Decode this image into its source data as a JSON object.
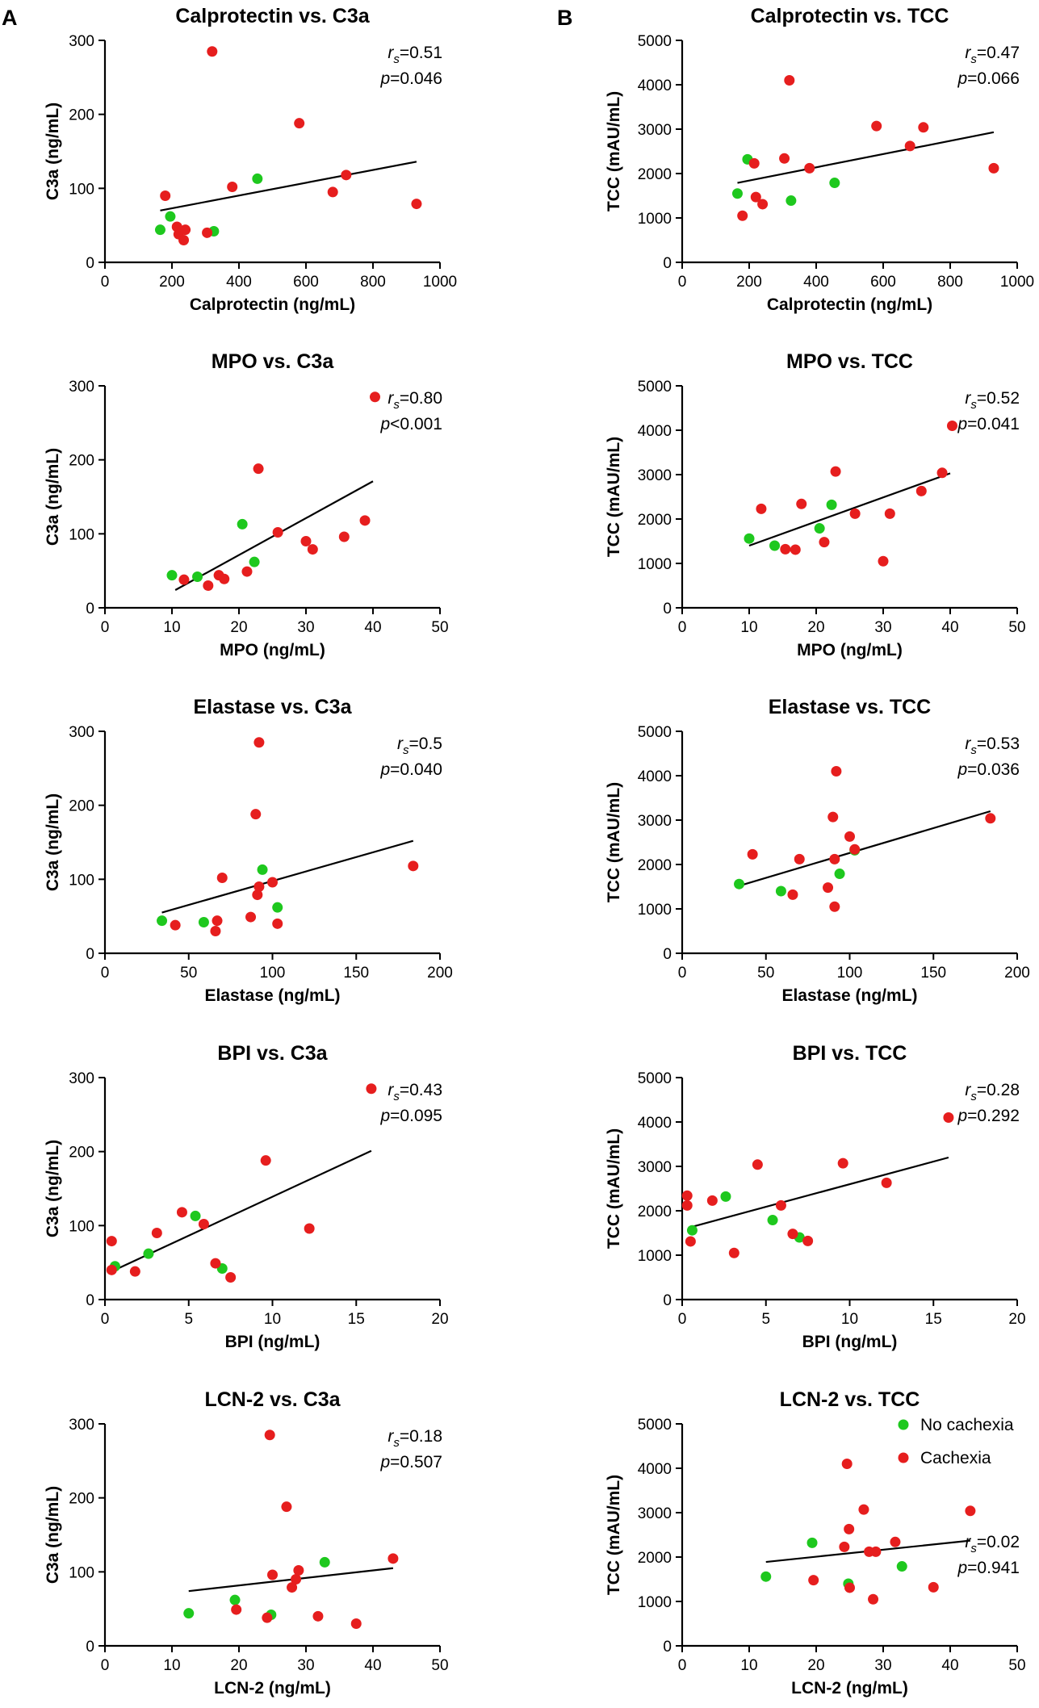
{
  "panel_letters": [
    "A",
    "B"
  ],
  "colors": {
    "no_cachexia": "#1ec81e",
    "cachexia": "#e61e1e",
    "axis": "#000000",
    "regression": "#000000"
  },
  "legend": [
    {
      "label": "No cachexia",
      "color": "#1ec81e"
    },
    {
      "label": "Cachexia",
      "color": "#e61e1e"
    }
  ],
  "chart_data": [
    {
      "type": "scatter",
      "title": "Calprotectin vs. C3a",
      "xlabel": "Calprotectin (ng/mL)",
      "ylabel": "C3a (ng/mL)",
      "xlim": [
        0,
        1000
      ],
      "ylim": [
        0,
        300
      ],
      "xticks": [
        "0",
        "200",
        "400",
        "600",
        "800",
        "1000"
      ],
      "yticks": [
        "0",
        "100",
        "200",
        "300"
      ],
      "stat_r": "=0.51",
      "stat_p": "=0.046",
      "fit": [
        [
          165,
          70
        ],
        [
          930,
          136
        ]
      ],
      "series": [
        {
          "name": "No cachexia",
          "points": [
            [
              165,
              44
            ],
            [
              195,
              62
            ],
            [
              325,
              42
            ],
            [
              455,
              113
            ]
          ]
        },
        {
          "name": "Cachexia",
          "points": [
            [
              180,
              90
            ],
            [
              215,
              48
            ],
            [
              220,
              38
            ],
            [
              235,
              30
            ],
            [
              240,
              44
            ],
            [
              305,
              40
            ],
            [
              320,
              285
            ],
            [
              380,
              102
            ],
            [
              580,
              188
            ],
            [
              680,
              95
            ],
            [
              720,
              118
            ],
            [
              930,
              79
            ]
          ]
        }
      ]
    },
    {
      "type": "scatter",
      "title": "Calprotectin vs. TCC",
      "xlabel": "Calprotectin (ng/mL)",
      "ylabel": "TCC (mAU/mL)",
      "xlim": [
        0,
        1000
      ],
      "ylim": [
        0,
        5000
      ],
      "xticks": [
        "0",
        "200",
        "400",
        "600",
        "800",
        "1000"
      ],
      "yticks": [
        "0",
        "1000",
        "2000",
        "3000",
        "4000",
        "5000"
      ],
      "stat_r": "=0.47",
      "stat_p": "=0.066",
      "fit": [
        [
          165,
          1790
        ],
        [
          930,
          2930
        ]
      ],
      "series": [
        {
          "name": "No cachexia",
          "points": [
            [
              165,
              1550
            ],
            [
              195,
              2320
            ],
            [
              325,
              1390
            ],
            [
              455,
              1790
            ]
          ]
        },
        {
          "name": "Cachexia",
          "points": [
            [
              180,
              1050
            ],
            [
              215,
              2230
            ],
            [
              220,
              1470
            ],
            [
              240,
              1310
            ],
            [
              305,
              2340
            ],
            [
              320,
              4100
            ],
            [
              380,
              2120
            ],
            [
              580,
              3070
            ],
            [
              680,
              2620
            ],
            [
              720,
              3040
            ],
            [
              930,
              2120
            ]
          ]
        }
      ]
    },
    {
      "type": "scatter",
      "title": "MPO vs. C3a",
      "xlabel": "MPO (ng/mL)",
      "ylabel": "C3a (ng/mL)",
      "xlim": [
        0,
        50
      ],
      "ylim": [
        0,
        300
      ],
      "xticks": [
        "0",
        "10",
        "20",
        "30",
        "40",
        "50"
      ],
      "yticks": [
        "0",
        "100",
        "200",
        "300"
      ],
      "stat_r": "=0.80",
      "stat_p": "<0.001",
      "fit": [
        [
          10.5,
          24
        ],
        [
          40,
          171
        ]
      ],
      "series": [
        {
          "name": "No cachexia",
          "points": [
            [
              10,
              44
            ],
            [
              13.8,
              42
            ],
            [
              20.5,
              113
            ],
            [
              22.3,
              62
            ]
          ]
        },
        {
          "name": "Cachexia",
          "points": [
            [
              11.8,
              38
            ],
            [
              15.4,
              30
            ],
            [
              17,
              44
            ],
            [
              17.8,
              39
            ],
            [
              21.2,
              49
            ],
            [
              22.9,
              188
            ],
            [
              25.8,
              102
            ],
            [
              30,
              90
            ],
            [
              31,
              79
            ],
            [
              35.7,
              96
            ],
            [
              38.8,
              118
            ],
            [
              40.3,
              285
            ]
          ]
        }
      ]
    },
    {
      "type": "scatter",
      "title": "MPO vs. TCC",
      "xlabel": "MPO (ng/mL)",
      "ylabel": "TCC (mAU/mL)",
      "xlim": [
        0,
        50
      ],
      "ylim": [
        0,
        5000
      ],
      "xticks": [
        "0",
        "10",
        "20",
        "30",
        "40",
        "50"
      ],
      "yticks": [
        "0",
        "1000",
        "2000",
        "3000",
        "4000",
        "5000"
      ],
      "stat_r": "=0.52",
      "stat_p": "=0.041",
      "fit": [
        [
          10,
          1400
        ],
        [
          40,
          3030
        ]
      ],
      "series": [
        {
          "name": "No cachexia",
          "points": [
            [
              10,
              1560
            ],
            [
              13.8,
              1400
            ],
            [
              20.5,
              1790
            ],
            [
              22.3,
              2320
            ]
          ]
        },
        {
          "name": "Cachexia",
          "points": [
            [
              11.8,
              2230
            ],
            [
              15.4,
              1320
            ],
            [
              16.9,
              1310
            ],
            [
              17.8,
              2340
            ],
            [
              21.2,
              1480
            ],
            [
              22.9,
              3070
            ],
            [
              25.8,
              2120
            ],
            [
              30,
              1050
            ],
            [
              31,
              2120
            ],
            [
              35.7,
              2630
            ],
            [
              38.8,
              3040
            ],
            [
              40.3,
              4100
            ]
          ]
        }
      ]
    },
    {
      "type": "scatter",
      "title": "Elastase vs. C3a",
      "xlabel": "Elastase (ng/mL)",
      "ylabel": "C3a (ng/mL)",
      "xlim": [
        0,
        200
      ],
      "ylim": [
        0,
        300
      ],
      "xticks": [
        "0",
        "50",
        "100",
        "150",
        "200"
      ],
      "yticks": [
        "0",
        "100",
        "200",
        "300"
      ],
      "stat_r": "=0.5",
      "stat_p": "=0.040",
      "fit": [
        [
          34,
          55
        ],
        [
          184,
          152
        ]
      ],
      "series": [
        {
          "name": "No cachexia",
          "points": [
            [
              34,
              44
            ],
            [
              59,
              42
            ],
            [
              94,
              113
            ],
            [
              103,
              62
            ]
          ]
        },
        {
          "name": "Cachexia",
          "points": [
            [
              42,
              38
            ],
            [
              66,
              30
            ],
            [
              67,
              44
            ],
            [
              70,
              102
            ],
            [
              87,
              49
            ],
            [
              90,
              188
            ],
            [
              91,
              79
            ],
            [
              92,
              90
            ],
            [
              92,
              285
            ],
            [
              100,
              96
            ],
            [
              103,
              40
            ],
            [
              184,
              118
            ]
          ]
        }
      ]
    },
    {
      "type": "scatter",
      "title": "Elastase vs. TCC",
      "xlabel": "Elastase (ng/mL)",
      "ylabel": "TCC (mAU/mL)",
      "xlim": [
        0,
        200
      ],
      "ylim": [
        0,
        5000
      ],
      "xticks": [
        "0",
        "50",
        "100",
        "150",
        "200"
      ],
      "yticks": [
        "0",
        "1000",
        "2000",
        "3000",
        "4000",
        "5000"
      ],
      "stat_r": "=0.53",
      "stat_p": "=0.036",
      "fit": [
        [
          34,
          1520
        ],
        [
          184,
          3200
        ]
      ],
      "series": [
        {
          "name": "No cachexia",
          "points": [
            [
              34,
              1560
            ],
            [
              59,
              1400
            ],
            [
              94,
              1790
            ],
            [
              103,
              2320
            ]
          ]
        },
        {
          "name": "Cachexia",
          "points": [
            [
              42,
              2230
            ],
            [
              66,
              1320
            ],
            [
              70,
              2120
            ],
            [
              87,
              1480
            ],
            [
              90,
              3070
            ],
            [
              91,
              1050
            ],
            [
              91,
              2120
            ],
            [
              92,
              4100
            ],
            [
              100,
              2630
            ],
            [
              103,
              2340
            ],
            [
              184,
              3040
            ]
          ]
        }
      ]
    },
    {
      "type": "scatter",
      "title": "BPI vs. C3a",
      "xlabel": "BPI (ng/mL)",
      "ylabel": "C3a (ng/mL)",
      "xlim": [
        0,
        20
      ],
      "ylim": [
        0,
        300
      ],
      "xticks": [
        "0",
        "5",
        "10",
        "15",
        "20"
      ],
      "yticks": [
        "0",
        "100",
        "200",
        "300"
      ],
      "stat_r": "=0.43",
      "stat_p": "=0.095",
      "fit": [
        [
          0.4,
          38
        ],
        [
          15.9,
          201
        ]
      ],
      "series": [
        {
          "name": "No cachexia",
          "points": [
            [
              0.6,
              45
            ],
            [
              2.6,
              62
            ],
            [
              5.4,
              113
            ],
            [
              7,
              42
            ]
          ]
        },
        {
          "name": "Cachexia",
          "points": [
            [
              0.4,
              79
            ],
            [
              0.4,
              40
            ],
            [
              1.8,
              38
            ],
            [
              3.1,
              90
            ],
            [
              4.6,
              118
            ],
            [
              5.9,
              102
            ],
            [
              6.6,
              49
            ],
            [
              7.5,
              30
            ],
            [
              9.6,
              188
            ],
            [
              12.2,
              96
            ],
            [
              15.9,
              285
            ]
          ]
        }
      ]
    },
    {
      "type": "scatter",
      "title": "BPI vs. TCC",
      "xlabel": "BPI (ng/mL)",
      "ylabel": "TCC (mAU/mL)",
      "xlim": [
        0,
        20
      ],
      "ylim": [
        0,
        5000
      ],
      "xticks": [
        "0",
        "5",
        "10",
        "15",
        "20"
      ],
      "yticks": [
        "0",
        "1000",
        "2000",
        "3000",
        "4000",
        "5000"
      ],
      "stat_r": "=0.28",
      "stat_p": "=0.292",
      "fit": [
        [
          0.4,
          1620
        ],
        [
          15.9,
          3200
        ]
      ],
      "series": [
        {
          "name": "No cachexia",
          "points": [
            [
              0.6,
              1560
            ],
            [
              2.6,
              2320
            ],
            [
              5.4,
              1790
            ],
            [
              7,
              1400
            ]
          ]
        },
        {
          "name": "Cachexia",
          "points": [
            [
              0.3,
              2120
            ],
            [
              0.3,
              2340
            ],
            [
              0.5,
              1310
            ],
            [
              1.8,
              2230
            ],
            [
              3.1,
              1050
            ],
            [
              4.5,
              3040
            ],
            [
              5.9,
              2120
            ],
            [
              6.6,
              1480
            ],
            [
              7.5,
              1320
            ],
            [
              9.6,
              3070
            ],
            [
              12.2,
              2630
            ],
            [
              15.9,
              4100
            ]
          ]
        }
      ]
    },
    {
      "type": "scatter",
      "title": "LCN-2 vs. C3a",
      "xlabel": "LCN-2 (ng/mL)",
      "ylabel": "C3a (ng/mL)",
      "xlim": [
        0,
        50
      ],
      "ylim": [
        0,
        300
      ],
      "xticks": [
        "0",
        "10",
        "20",
        "30",
        "40",
        "50"
      ],
      "yticks": [
        "0",
        "100",
        "200",
        "300"
      ],
      "stat_r": "=0.18",
      "stat_p": "=0.507",
      "fit": [
        [
          12.5,
          74
        ],
        [
          43,
          105
        ]
      ],
      "series": [
        {
          "name": "No cachexia",
          "points": [
            [
              12.5,
              44
            ],
            [
              19.4,
              62
            ],
            [
              24.8,
              42
            ],
            [
              32.8,
              113
            ]
          ]
        },
        {
          "name": "Cachexia",
          "points": [
            [
              19.6,
              49
            ],
            [
              24.2,
              38
            ],
            [
              24.6,
              285
            ],
            [
              25,
              96
            ],
            [
              27.1,
              188
            ],
            [
              27.9,
              79
            ],
            [
              28.5,
              90
            ],
            [
              28.9,
              102
            ],
            [
              31.8,
              40
            ],
            [
              37.5,
              30
            ],
            [
              43,
              118
            ]
          ]
        }
      ]
    },
    {
      "type": "scatter",
      "title": "LCN-2 vs. TCC",
      "xlabel": "LCN-2 (ng/mL)",
      "ylabel": "TCC (mAU/mL)",
      "xlim": [
        0,
        50
      ],
      "ylim": [
        0,
        5000
      ],
      "xticks": [
        "0",
        "10",
        "20",
        "30",
        "40",
        "50"
      ],
      "yticks": [
        "0",
        "1000",
        "2000",
        "3000",
        "4000",
        "5000"
      ],
      "stat_r": "=0.02",
      "stat_p": "=0.941",
      "fit": [
        [
          12.5,
          1890
        ],
        [
          43,
          2370
        ]
      ],
      "series": [
        {
          "name": "No cachexia",
          "points": [
            [
              12.5,
              1560
            ],
            [
              19.4,
              2320
            ],
            [
              24.8,
              1400
            ],
            [
              32.8,
              1790
            ]
          ]
        },
        {
          "name": "Cachexia",
          "points": [
            [
              19.6,
              1480
            ],
            [
              24.2,
              2230
            ],
            [
              24.6,
              4100
            ],
            [
              24.9,
              2630
            ],
            [
              25,
              1310
            ],
            [
              27.1,
              3070
            ],
            [
              27.9,
              2120
            ],
            [
              28.5,
              1050
            ],
            [
              28.9,
              2120
            ],
            [
              31.8,
              2340
            ],
            [
              37.5,
              1320
            ],
            [
              43,
              3040
            ]
          ]
        }
      ]
    }
  ]
}
